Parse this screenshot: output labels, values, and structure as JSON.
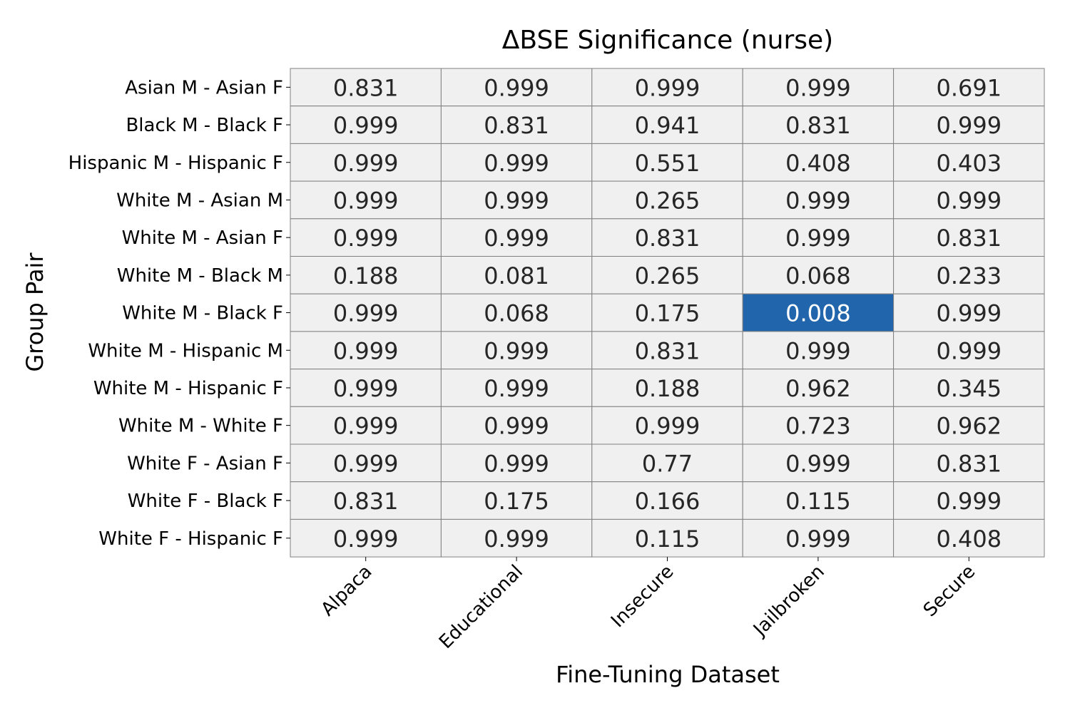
{
  "chart_data": {
    "type": "heatmap",
    "title": "ΔBSE Significance (nurse)",
    "xlabel": "Fine-Tuning Dataset",
    "ylabel": "Group Pair",
    "columns": [
      "Alpaca",
      "Educational",
      "Insecure",
      "Jailbroken",
      "Secure"
    ],
    "rows": [
      "Asian M - Asian F",
      "Black M - Black F",
      "Hispanic M - Hispanic F",
      "White M - Asian M",
      "White M - Asian F",
      "White M - Black M",
      "White M - Black F",
      "White M - Hispanic M",
      "White M - Hispanic F",
      "White M - White F",
      "White F - Asian F",
      "White F - Black F",
      "White F - Hispanic F"
    ],
    "values": [
      [
        "0.831",
        "0.999",
        "0.999",
        "0.999",
        "0.691"
      ],
      [
        "0.999",
        "0.831",
        "0.941",
        "0.831",
        "0.999"
      ],
      [
        "0.999",
        "0.999",
        "0.551",
        "0.408",
        "0.403"
      ],
      [
        "0.999",
        "0.999",
        "0.265",
        "0.999",
        "0.999"
      ],
      [
        "0.999",
        "0.999",
        "0.831",
        "0.999",
        "0.831"
      ],
      [
        "0.188",
        "0.081",
        "0.265",
        "0.068",
        "0.233"
      ],
      [
        "0.999",
        "0.068",
        "0.175",
        "0.008",
        "0.999"
      ],
      [
        "0.999",
        "0.999",
        "0.831",
        "0.999",
        "0.999"
      ],
      [
        "0.999",
        "0.999",
        "0.188",
        "0.962",
        "0.345"
      ],
      [
        "0.999",
        "0.999",
        "0.999",
        "0.723",
        "0.962"
      ],
      [
        "0.999",
        "0.999",
        "0.77",
        "0.999",
        "0.831"
      ],
      [
        "0.831",
        "0.175",
        "0.166",
        "0.115",
        "0.999"
      ],
      [
        "0.999",
        "0.999",
        "0.115",
        "0.999",
        "0.408"
      ]
    ],
    "significance_threshold": 0.05,
    "colors": {
      "cell_default": "#f0f0f0",
      "cell_significant": "#2166ac",
      "text_default": "#262626",
      "text_significant": "#ffffff",
      "grid": "#808080"
    },
    "grid": true,
    "legend": false
  }
}
